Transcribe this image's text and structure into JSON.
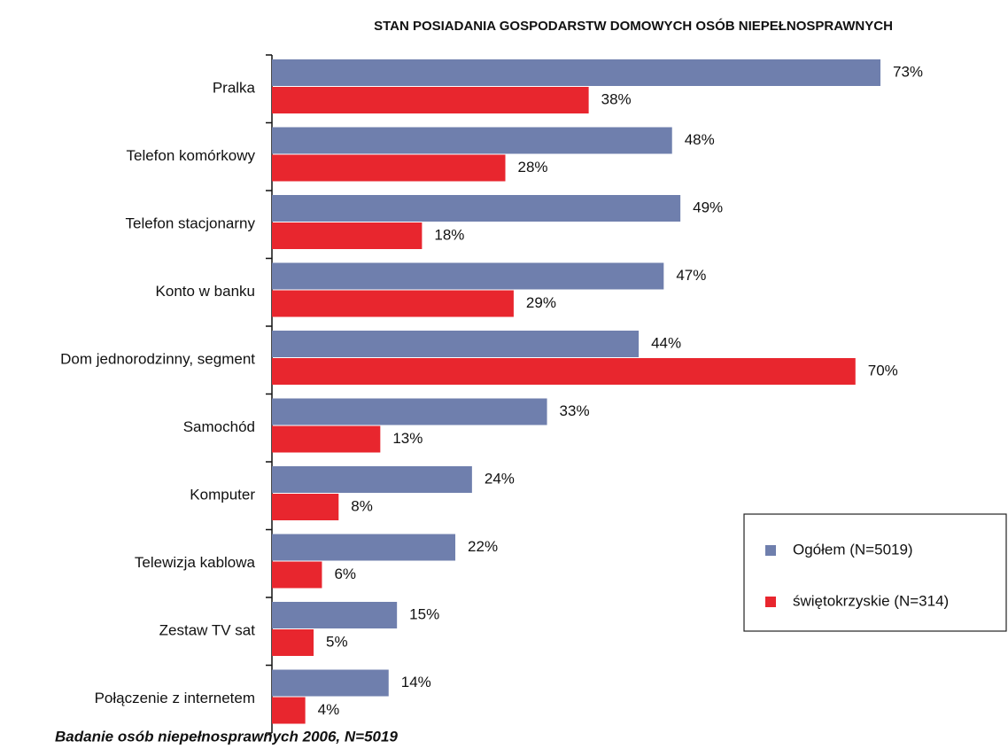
{
  "chart_data": {
    "type": "barh",
    "title": "STAN POSIADANIA GOSPODARSTW DOMOWYCH OSÓB NIEPEŁNOSPRAWNYCH",
    "footnote": "Badanie osób niepełnosprawnych 2006, N=5019",
    "categories": [
      "Pralka",
      "Telefon komórkowy",
      "Telefon stacjonarny",
      "Konto w banku",
      "Dom jednorodzinny, segment",
      "Samochód",
      "Komputer",
      "Telewizja kablowa",
      "Zestaw TV sat",
      "Połączenie z internetem"
    ],
    "series": [
      {
        "name": "Ogółem (N=5019)",
        "color": "#6f7fad",
        "values": [
          73,
          48,
          49,
          47,
          44,
          33,
          24,
          22,
          15,
          14
        ],
        "value_labels": [
          "73%",
          "48%",
          "49%",
          "47%",
          "44%",
          "33%",
          "24%",
          "22%",
          "15%",
          "14%"
        ]
      },
      {
        "name": "świętokrzyskie (N=314)",
        "color": "#e8262e",
        "values": [
          38,
          28,
          18,
          29,
          70,
          13,
          8,
          6,
          5,
          4
        ],
        "value_labels": [
          "38%",
          "28%",
          "18%",
          "29%",
          "70%",
          "13%",
          "8%",
          "6%",
          "5%",
          "4%"
        ]
      }
    ],
    "legend": "lower right"
  }
}
